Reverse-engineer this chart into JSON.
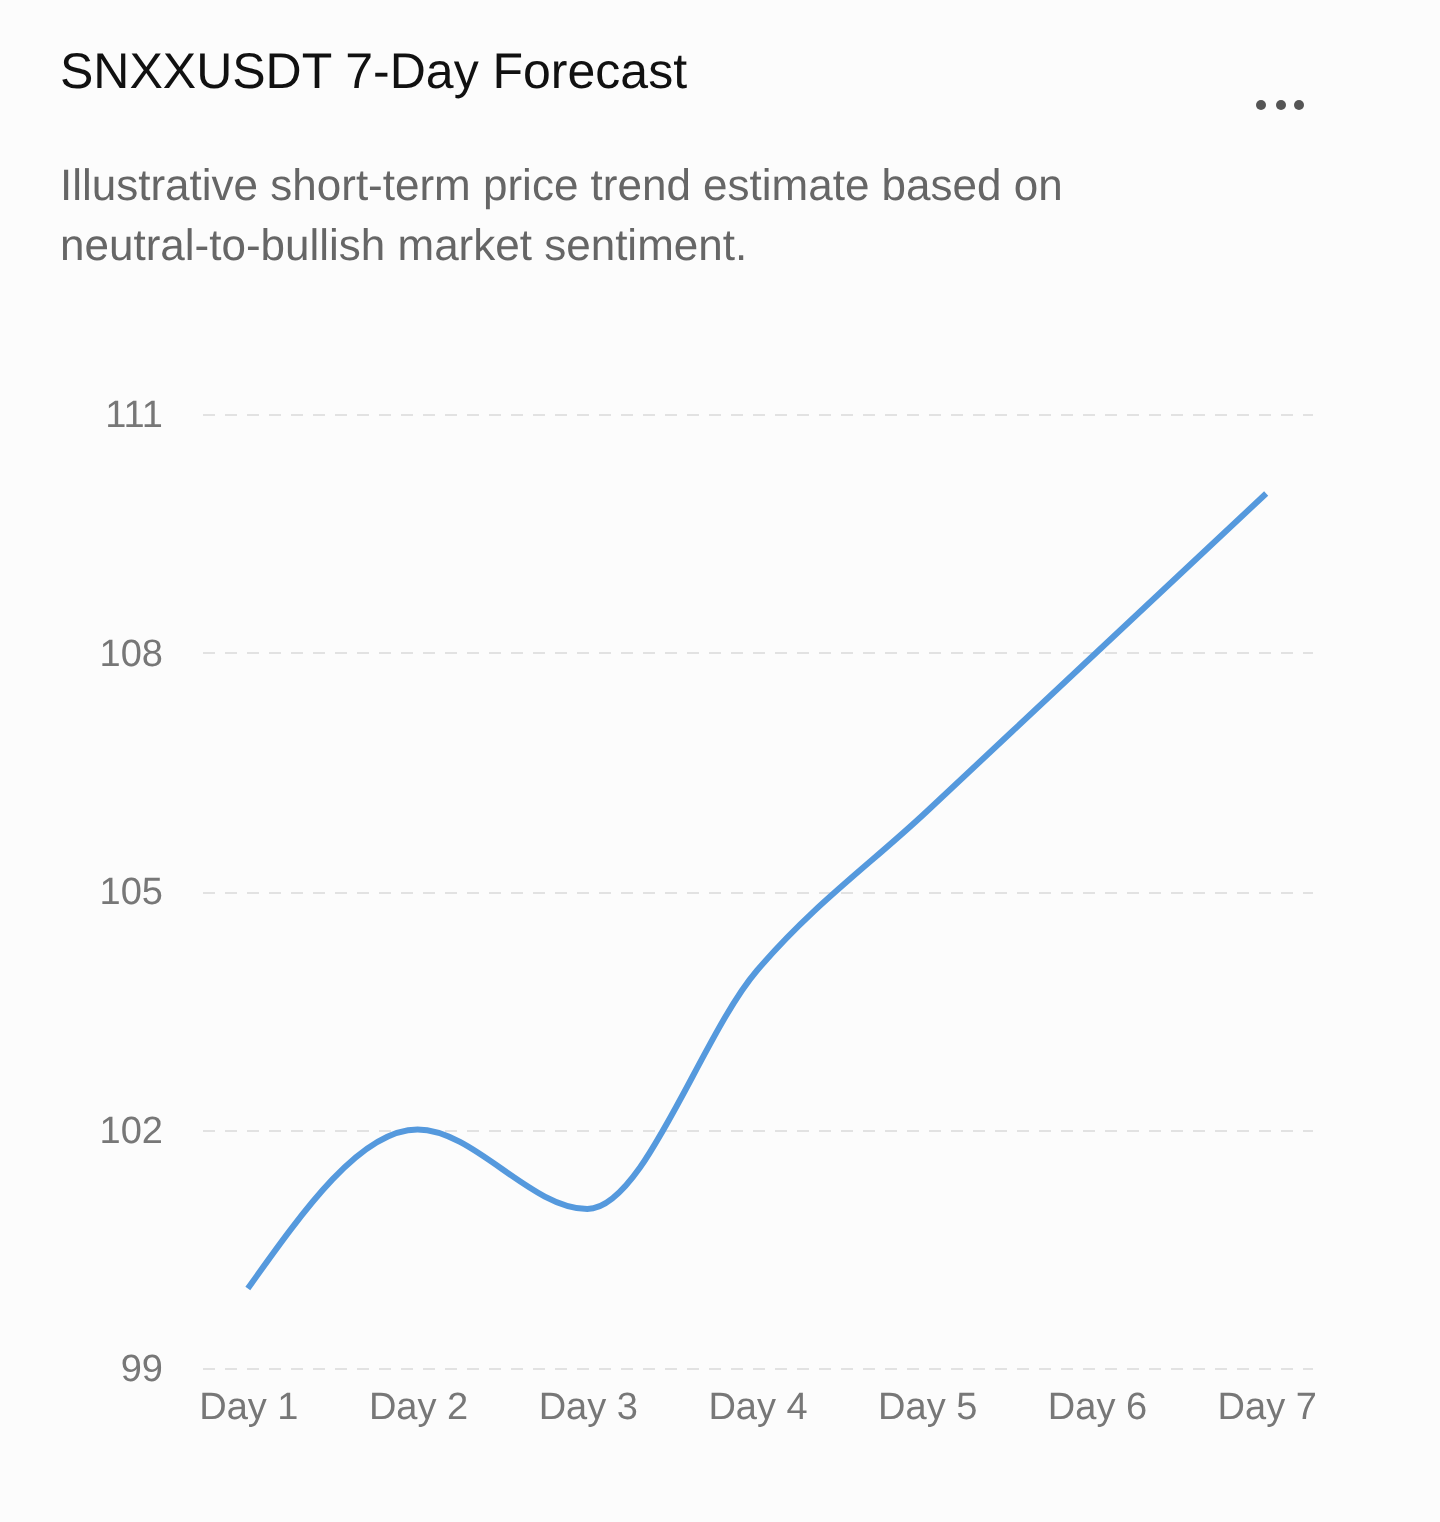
{
  "chart_data": {
    "type": "line",
    "title": "SNXXUSDT 7-Day Forecast",
    "subtitle": "Illustrative short-term price trend estimate based on neutral-to-bullish market sentiment.",
    "categories": [
      "Day 1",
      "Day 2",
      "Day 3",
      "Day 4",
      "Day 5",
      "Day 6",
      "Day 7"
    ],
    "series": [
      {
        "color": "#5599dd",
        "values": [
          100,
          102,
          101,
          104,
          106,
          108,
          110
        ]
      }
    ],
    "ylim": [
      99,
      111
    ],
    "yticks": [
      99,
      102,
      105,
      108,
      111
    ],
    "grid": "y",
    "marker": "none",
    "line_style": "solid"
  }
}
